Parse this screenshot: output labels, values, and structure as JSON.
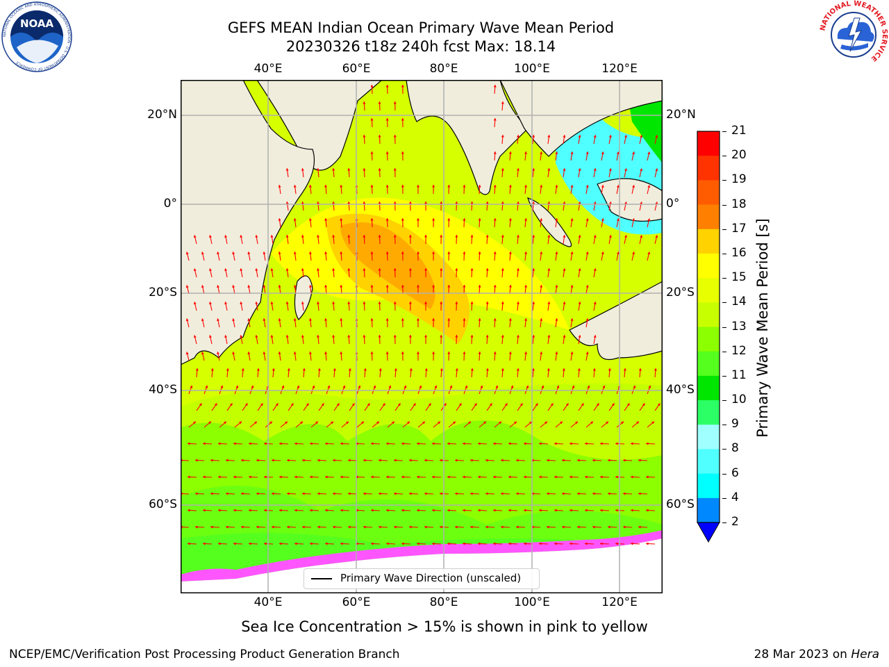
{
  "header": {
    "title_line1": "GEFS MEAN Indian Ocean Primary Wave Mean Period",
    "title_line2": "20230326 t18z 240h fcst   Max: 18.14"
  },
  "logos": {
    "left": {
      "text": "NOAA",
      "ring": "NATIONAL OCEANIC AND ATMOSPHERIC ADMINISTRATION · U.S. DEPARTMENT OF COMMERCE"
    },
    "right": {
      "ring": "NATIONAL WEATHER SERVICE"
    }
  },
  "map": {
    "lon_ticks_top": [
      "40°E",
      "60°E",
      "80°E",
      "100°E",
      "120°E"
    ],
    "lon_ticks_bottom": [
      "40°E",
      "60°E",
      "80°E",
      "100°E",
      "120°E"
    ],
    "lat_ticks_left": [
      "20°N",
      "0°",
      "20°S",
      "40°S",
      "60°S"
    ],
    "lat_ticks_right": [
      "20°N",
      "0°",
      "20°S",
      "40°S",
      "60°S"
    ],
    "land_color": "#f0eddc",
    "arrow_color": "#ff0000",
    "legend_label": "Primary Wave Direction (unscaled)"
  },
  "colorbar": {
    "label": "Primary Wave Mean Period [s]",
    "ticks": [
      "21",
      "20",
      "19",
      "18",
      "17",
      "16",
      "15",
      "14",
      "13",
      "12",
      "11",
      "10",
      "9",
      "8",
      "6",
      "4",
      "2"
    ],
    "colors": [
      "#ff0000",
      "#ff3300",
      "#ff5c00",
      "#ff8000",
      "#ffaa00",
      "#ffd200",
      "#ffff00",
      "#e8ff00",
      "#c8ff00",
      "#8cff00",
      "#55ff1e",
      "#00e600",
      "#2cff66",
      "#5cff90",
      "#a0ffff",
      "#50ffff",
      "#00ffff",
      "#0088ff",
      "#0000ff"
    ]
  },
  "note": "Sea Ice Concentration > 15% is shown in pink to yellow",
  "footer": {
    "left": "NCEP/EMC/Verification Post Processing Product Generation Branch",
    "right_date": "28 Mar 2023 on ",
    "right_machine": "Hera"
  }
}
